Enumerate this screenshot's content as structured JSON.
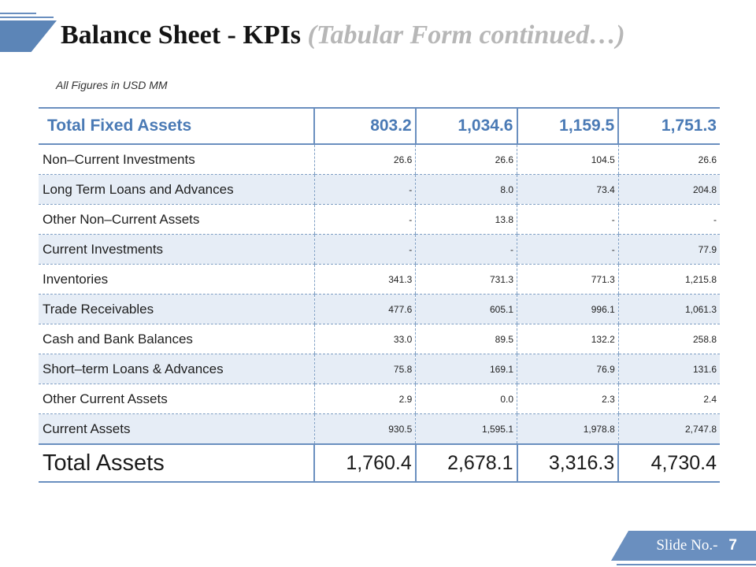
{
  "slide": {
    "title_main": "Balance Sheet - KPIs",
    "title_sub": "(Tabular Form continued…)",
    "figures_note": "All Figures in USD MM",
    "slide_label": "Slide No.-",
    "slide_number": "7"
  },
  "table": {
    "header": {
      "label": "Total Fixed Assets",
      "values": [
        "803.2",
        "1,034.6",
        "1,159.5",
        "1,751.3"
      ]
    },
    "rows": [
      {
        "label": "Non–Current Investments",
        "values": [
          "26.6",
          "26.6",
          "104.5",
          "26.6"
        ]
      },
      {
        "label": "Long Term Loans and Advances",
        "values": [
          "-",
          "8.0",
          "73.4",
          "204.8"
        ]
      },
      {
        "label": "Other Non–Current Assets",
        "values": [
          "-",
          "13.8",
          "-",
          "-"
        ]
      },
      {
        "label": "Current Investments",
        "values": [
          "-",
          "-",
          "-",
          "77.9"
        ]
      },
      {
        "label": "Inventories",
        "values": [
          "341.3",
          "731.3",
          "771.3",
          "1,215.8"
        ]
      },
      {
        "label": "Trade Receivables",
        "values": [
          "477.6",
          "605.1",
          "996.1",
          "1,061.3"
        ]
      },
      {
        "label": "Cash and Bank Balances",
        "values": [
          "33.0",
          "89.5",
          "132.2",
          "258.8"
        ]
      },
      {
        "label": "Short–term Loans & Advances",
        "values": [
          "75.8",
          "169.1",
          "76.9",
          "131.6"
        ]
      },
      {
        "label": "Other Current Assets",
        "values": [
          "2.9",
          "0.0",
          "2.3",
          "2.4"
        ]
      },
      {
        "label": "Current Assets",
        "values": [
          "930.5",
          "1,595.1",
          "1,978.8",
          "2,747.8"
        ]
      }
    ],
    "total": {
      "label": "Total Assets",
      "values": [
        "1,760.4",
        "2,678.1",
        "3,316.3",
        "4,730.4"
      ]
    }
  },
  "colors": {
    "accent": "#6a8fbf",
    "header_text": "#4a7ab5",
    "row_shade": "#e6edf6"
  }
}
